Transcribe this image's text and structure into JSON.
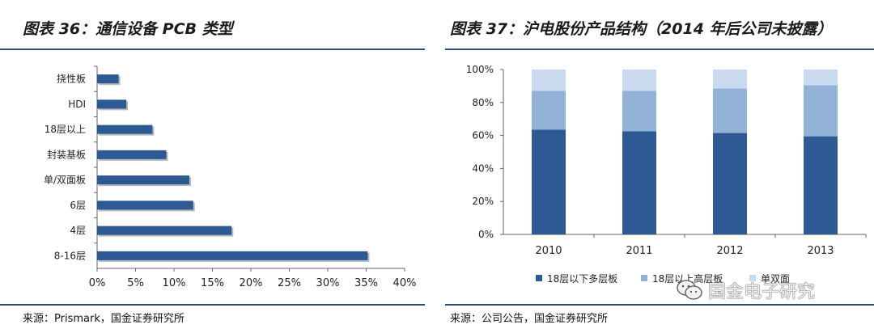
{
  "left": {
    "title": "图表 36：通信设备 PCB 类型",
    "source": "来源：Prismark，国金证券研究所"
  },
  "right": {
    "title": "图表 37：沪电股份产品结构（2014 年后公司未披露）",
    "source": "来源：公司公告，国金证券研究所"
  },
  "watermark": {
    "text": "国金电子研究",
    "icon": "wechat-icon"
  },
  "colors": {
    "bar": "#2e5a94",
    "series1": "#2e5a94",
    "series2": "#93b2d8",
    "series3": "#c9daf1",
    "rule": "#2a4f7c"
  },
  "chart_data": [
    {
      "type": "bar",
      "orientation": "horizontal",
      "title": "",
      "categories": [
        "挠性板",
        "HDI",
        "18层以上",
        "封装基板",
        "单/双面板",
        "6层",
        "4层",
        "8-16层"
      ],
      "values": [
        2.8,
        3.8,
        7.2,
        9.0,
        12.0,
        12.5,
        17.5,
        35.2
      ],
      "xlim": [
        0,
        40
      ],
      "xticks": [
        "0%",
        "5%",
        "10%",
        "15%",
        "20%",
        "25%",
        "30%",
        "35%",
        "40%"
      ],
      "grid": false,
      "legend": "none"
    },
    {
      "type": "bar",
      "stacked": true,
      "title": "",
      "categories": [
        "2010",
        "2011",
        "2012",
        "2013"
      ],
      "series": [
        {
          "name": "18层以下多层板",
          "values": [
            63.5,
            62.5,
            61.5,
            59.5
          ]
        },
        {
          "name": "18层以上高层板",
          "values": [
            23.5,
            24.5,
            27.0,
            31.0
          ]
        },
        {
          "name": "单双面",
          "values": [
            13.0,
            13.0,
            11.5,
            9.5
          ]
        }
      ],
      "ylim": [
        0,
        100
      ],
      "yticks": [
        "0%",
        "20%",
        "40%",
        "60%",
        "80%",
        "100%"
      ],
      "grid": false,
      "legend": "bottom"
    }
  ]
}
